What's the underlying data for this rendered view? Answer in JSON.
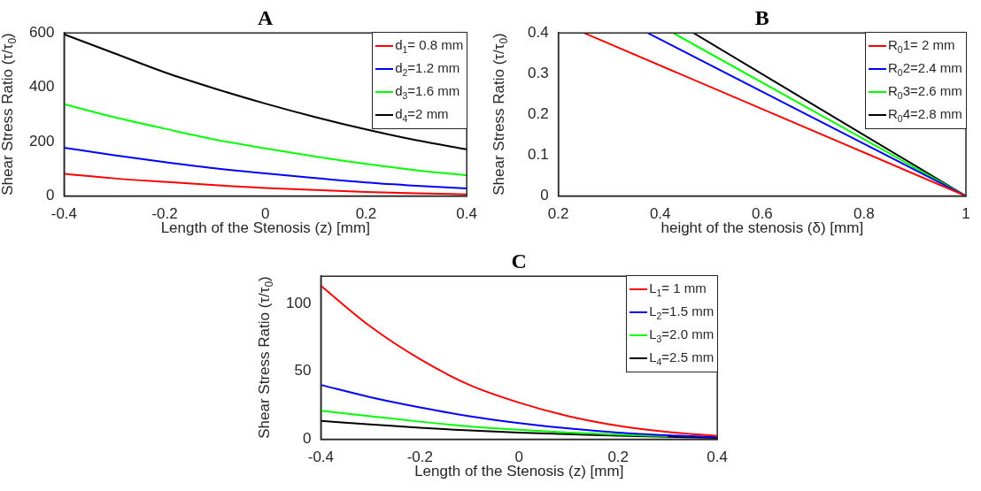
{
  "chart_data": [
    {
      "type": "line",
      "title": "A",
      "xlabel": "Length of the Stenosis (z) [mm]",
      "ylabel": "Shear Stress Ratio (τ/τ$_{0}$)",
      "x": [
        -0.4,
        -0.3,
        -0.2,
        -0.1,
        0,
        0.1,
        0.2,
        0.3,
        0.4
      ],
      "xlim": [
        -0.4,
        0.4
      ],
      "xticks": [
        -0.4,
        -0.2,
        0,
        0.2,
        0.4
      ],
      "ylim": [
        0,
        600
      ],
      "yticks": [
        0,
        200,
        400,
        600
      ],
      "grid": false,
      "legend": "top right",
      "marker": "none",
      "line_style": "solid",
      "series": [
        {
          "name": "d$_{1}$= 0.8 mm",
          "color": "#ff0000",
          "values": [
            82,
            65,
            52,
            40,
            30,
            22,
            15,
            10,
            6
          ]
        },
        {
          "name": "d$_{2}$=1.2 mm",
          "color": "#0000ff",
          "values": [
            178,
            150,
            125,
            102,
            83,
            66,
            50,
            38,
            28
          ]
        },
        {
          "name": "d$_{3}$=1.6 mm",
          "color": "#00ff00",
          "values": [
            338,
            290,
            248,
            208,
            175,
            145,
            118,
            95,
            76
          ]
        },
        {
          "name": "d$_{4}$=2 mm",
          "color": "#000000",
          "values": [
            595,
            525,
            455,
            395,
            340,
            290,
            245,
            205,
            172
          ]
        }
      ]
    },
    {
      "type": "line",
      "title": "B",
      "xlabel": "height of the stenosis (δ) [mm]",
      "ylabel": "Shear Stress Ratio (τ/τ$_{0}$)",
      "xlim": [
        0.2,
        1
      ],
      "xticks": [
        0.2,
        0.4,
        0.6,
        0.8,
        1
      ],
      "ylim": [
        0,
        0.4
      ],
      "yticks": [
        0,
        0.1,
        0.2,
        0.3,
        0.4
      ],
      "grid": false,
      "legend": "top right",
      "marker": "none",
      "line_style": "solid",
      "series": [
        {
          "name": "R$_{0}$1= 2 mm",
          "color": "#ff0000",
          "x": [
            0.25,
            1
          ],
          "values": [
            0.4,
            0
          ]
        },
        {
          "name": "R$_{0}$2=2.4 mm",
          "color": "#0000ff",
          "x": [
            0.375,
            1
          ],
          "values": [
            0.4,
            0
          ]
        },
        {
          "name": "R$_{0}$3=2.6 mm",
          "color": "#00ff00",
          "x": [
            0.425,
            1
          ],
          "values": [
            0.4,
            0
          ]
        },
        {
          "name": "R$_{0}$4=2.8 mm",
          "color": "#000000",
          "x": [
            0.465,
            1
          ],
          "values": [
            0.4,
            0
          ]
        }
      ]
    },
    {
      "type": "line",
      "title": "C",
      "xlabel": "Length of the Stenosis (z) [mm]",
      "ylabel": "Shear Stress Ratio (τ/τ$_{0}$)",
      "x": [
        -0.4,
        -0.3,
        -0.2,
        -0.1,
        0,
        0.1,
        0.2,
        0.3,
        0.4
      ],
      "xlim": [
        -0.4,
        0.4
      ],
      "xticks": [
        -0.4,
        -0.2,
        0,
        0.2,
        0.4
      ],
      "ylim": [
        0,
        120
      ],
      "yticks": [
        0,
        50,
        100
      ],
      "grid": false,
      "legend": "top right",
      "marker": "none",
      "line_style": "solid",
      "series": [
        {
          "name": "L$_{1}$= 1 mm",
          "color": "#ff0000",
          "values": [
            113,
            83,
            59,
            40,
            27,
            17,
            10,
            5.5,
            2.5
          ]
        },
        {
          "name": "L$_{2}$=1.5 mm",
          "color": "#0000ff",
          "values": [
            40,
            31,
            23.5,
            17,
            12,
            8,
            5,
            3,
            1.5
          ]
        },
        {
          "name": "L$_{3}$=2.0 mm",
          "color": "#00ff00",
          "values": [
            21,
            17,
            13,
            9.5,
            7,
            5,
            3.5,
            2.3,
            null
          ]
        },
        {
          "name": "L$_{4}$=2.5 mm",
          "color": "#000000",
          "values": [
            13.5,
            11,
            8.5,
            6.5,
            5,
            3.8,
            2.7,
            1.8,
            1
          ]
        }
      ]
    }
  ]
}
